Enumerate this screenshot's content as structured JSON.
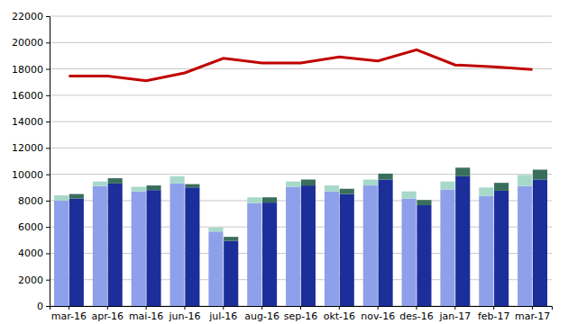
{
  "chart_data": {
    "type": "bar",
    "stacked": true,
    "grid": true,
    "categories": [
      "mar-16",
      "apr-16",
      "mai-16",
      "jun-16",
      "jul-16",
      "aug-16",
      "sep-16",
      "okt-16",
      "nov-16",
      "des-16",
      "jan-17",
      "feb-17",
      "mar-17"
    ],
    "ylim": [
      0,
      22000
    ],
    "yticks": [
      0,
      2000,
      4000,
      6000,
      8000,
      10000,
      12000,
      14000,
      16000,
      18000,
      20000,
      22000
    ],
    "series": [
      {
        "type": "bar",
        "color": "#8fa0ea",
        "values": [
          8000,
          9100,
          8700,
          9300,
          5650,
          7800,
          9050,
          8700,
          9150,
          8150,
          8850,
          8350,
          9100
        ]
      },
      {
        "type": "bar",
        "color": "#a7d9cb",
        "values": [
          400,
          350,
          350,
          550,
          300,
          450,
          400,
          450,
          450,
          550,
          600,
          650,
          850
        ]
      },
      {
        "type": "bar",
        "color": "#1c2e99",
        "values": [
          8150,
          9300,
          8800,
          9000,
          4950,
          7850,
          9150,
          8500,
          9600,
          7650,
          9850,
          8750,
          9600
        ]
      },
      {
        "type": "bar",
        "color": "#3a6e5c",
        "values": [
          350,
          400,
          350,
          250,
          300,
          400,
          450,
          400,
          450,
          400,
          650,
          600,
          750
        ]
      },
      {
        "type": "line",
        "color": "#c00000",
        "values": [
          17450,
          17450,
          17100,
          17700,
          18800,
          18450,
          18450,
          18900,
          18600,
          19450,
          18300,
          18150,
          17950
        ]
      }
    ]
  }
}
